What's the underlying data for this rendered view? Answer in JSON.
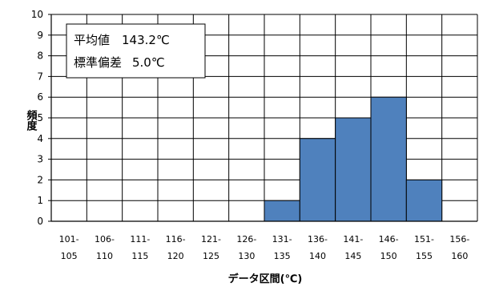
{
  "chart_data": {
    "type": "bar",
    "categories": [
      [
        "101-",
        "105"
      ],
      [
        "106-",
        "110"
      ],
      [
        "111-",
        "115"
      ],
      [
        "116-",
        "120"
      ],
      [
        "121-",
        "125"
      ],
      [
        "126-",
        "130"
      ],
      [
        "131-",
        "135"
      ],
      [
        "136-",
        "140"
      ],
      [
        "141-",
        "145"
      ],
      [
        "146-",
        "150"
      ],
      [
        "151-",
        "155"
      ],
      [
        "156-",
        "160"
      ]
    ],
    "values": [
      0,
      0,
      0,
      0,
      0,
      0,
      1,
      4,
      5,
      6,
      2,
      0
    ],
    "ylim": [
      0,
      10
    ],
    "ytick_step": 1,
    "xlabel": "データ区間(℃)",
    "ylabel": "頻度",
    "grid": true,
    "bar_color": "#4f81bd",
    "annotation": {
      "line1_label": "平均値",
      "line1_value": "143.2℃",
      "line2_label": "標準偏差",
      "line2_value": "5.0℃"
    }
  }
}
